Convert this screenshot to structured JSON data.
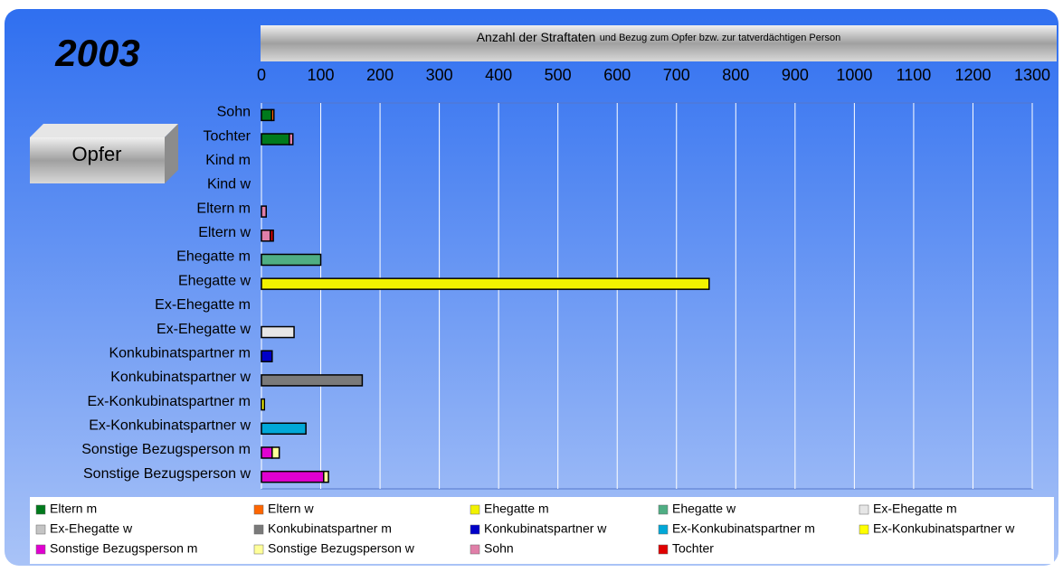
{
  "chart_data": {
    "type": "stacked-barh",
    "title": "Anzahl der Straftaten",
    "subtitle": "und Bezug zum Opfer bzw. zur tatverdächtigen Person",
    "annotations": [
      "2003",
      "Opfer"
    ],
    "categories": [
      "Sohn",
      "Tochter",
      "Kind m",
      "Kind w",
      "Eltern m",
      "Eltern w",
      "Ehegatte m",
      "Ehegatte w",
      "Ex-Ehegatte m",
      "Ex-Ehegatte w",
      "Konkubinatspartner m",
      "Konkubinatspartner w",
      "Ex-Konkubinatspartner m",
      "Ex-Konkubinatspartner w",
      "Sonstige Bezugsperson m",
      "Sonstige Bezugsperson w"
    ],
    "series": [
      {
        "name": "Eltern m",
        "color": "#007a1c",
        "values": [
          17,
          47,
          0,
          0,
          0,
          0,
          0,
          0,
          0,
          0,
          0,
          0,
          0,
          0,
          0,
          0
        ]
      },
      {
        "name": "Eltern w",
        "color": "#ff6600",
        "values": [
          4,
          0,
          0,
          0,
          0,
          0,
          0,
          0,
          0,
          0,
          0,
          0,
          0,
          0,
          0,
          0
        ]
      },
      {
        "name": "Ehegatte m",
        "color": "#f2f200",
        "values": [
          0,
          0,
          0,
          0,
          0,
          0,
          0,
          755,
          0,
          0,
          0,
          0,
          0,
          0,
          0,
          0
        ]
      },
      {
        "name": "Ehegatte w",
        "color": "#4fae84",
        "values": [
          0,
          0,
          0,
          0,
          0,
          0,
          100,
          0,
          0,
          0,
          0,
          0,
          0,
          0,
          0,
          0
        ]
      },
      {
        "name": "Ex-Ehegatte m",
        "color": "#e6e6e6",
        "values": [
          0,
          0,
          0,
          0,
          0,
          0,
          0,
          0,
          0,
          55,
          0,
          0,
          0,
          0,
          0,
          0
        ]
      },
      {
        "name": "Ex-Ehegatte w",
        "color": "#c4c4c4",
        "values": [
          0,
          0,
          0,
          0,
          0,
          0,
          0,
          0,
          0,
          0,
          0,
          0,
          0,
          0,
          0,
          0
        ]
      },
      {
        "name": "Konkubinatspartner m",
        "color": "#7a7a7a",
        "values": [
          0,
          0,
          0,
          0,
          0,
          0,
          0,
          0,
          0,
          0,
          0,
          170,
          0,
          0,
          0,
          0
        ]
      },
      {
        "name": "Konkubinatspartner w",
        "color": "#0000c8",
        "values": [
          0,
          0,
          0,
          0,
          0,
          0,
          0,
          0,
          0,
          0,
          18,
          0,
          0,
          0,
          0,
          0
        ]
      },
      {
        "name": "Ex-Konkubinatspartner m",
        "color": "#00a8d8",
        "values": [
          0,
          0,
          0,
          0,
          0,
          0,
          0,
          0,
          0,
          0,
          0,
          0,
          0,
          75,
          0,
          0
        ]
      },
      {
        "name": "Ex-Konkubinatspartner w",
        "color": "#ffff00",
        "values": [
          0,
          0,
          0,
          0,
          0,
          0,
          0,
          0,
          0,
          0,
          0,
          0,
          5,
          0,
          0,
          0
        ]
      },
      {
        "name": "Sonstige Bezugsperson m",
        "color": "#e000d0",
        "values": [
          0,
          0,
          0,
          0,
          0,
          0,
          0,
          0,
          0,
          0,
          0,
          0,
          0,
          0,
          18,
          105
        ]
      },
      {
        "name": "Sonstige Bezugsperson w",
        "color": "#ffff99",
        "values": [
          0,
          0,
          0,
          0,
          0,
          0,
          0,
          0,
          0,
          0,
          0,
          0,
          0,
          0,
          12,
          8
        ]
      },
      {
        "name": "Sohn",
        "color": "#e07fa8",
        "values": [
          0,
          6,
          0,
          0,
          8,
          15,
          0,
          0,
          0,
          0,
          0,
          0,
          0,
          0,
          0,
          0
        ]
      },
      {
        "name": "Tochter",
        "color": "#e00000",
        "values": [
          0,
          0,
          0,
          0,
          0,
          5,
          0,
          0,
          0,
          0,
          0,
          0,
          0,
          0,
          0,
          0
        ]
      }
    ],
    "xlim": [
      0,
      1300
    ],
    "xticks": [
      0,
      100,
      200,
      300,
      400,
      500,
      600,
      700,
      800,
      900,
      1000,
      1100,
      1200,
      1300
    ],
    "grid": true
  }
}
